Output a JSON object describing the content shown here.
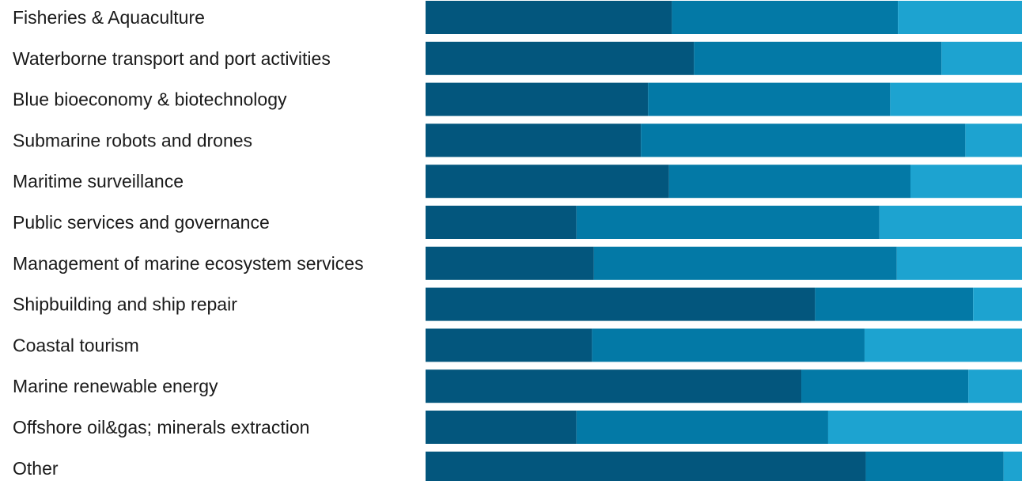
{
  "chart_data": {
    "type": "bar",
    "orientation": "horizontal",
    "stacked": "percent",
    "categories": [
      "Fisheries & Aquaculture",
      "Waterborne transport and port activities",
      "Blue bioeconomy & biotechnology",
      "Submarine robots and drones",
      "Maritime surveillance",
      "Public services and governance",
      "Management of marine ecosystem services",
      "Shipbuilding and ship repair",
      "Coastal tourism",
      "Marine renewable energy",
      "Offshore oil&gas; minerals extraction",
      "Other"
    ],
    "series": [
      {
        "color": "#03567d",
        "values": [
          41.3,
          45.0,
          37.3,
          36.1,
          40.8,
          25.3,
          28.2,
          65.3,
          27.9,
          63.0,
          25.3,
          73.8
        ]
      },
      {
        "color": "#0379a6",
        "values": [
          37.9,
          41.5,
          40.6,
          54.4,
          40.5,
          50.8,
          50.8,
          26.5,
          45.7,
          28.0,
          42.2,
          23.1
        ]
      },
      {
        "color": "#1da3d0",
        "values": [
          20.8,
          13.5,
          22.1,
          9.5,
          18.7,
          23.9,
          21.0,
          8.2,
          26.4,
          9.0,
          32.5,
          3.1
        ]
      }
    ],
    "xlim": [
      0,
      100
    ],
    "grid": false,
    "legend": "none"
  }
}
